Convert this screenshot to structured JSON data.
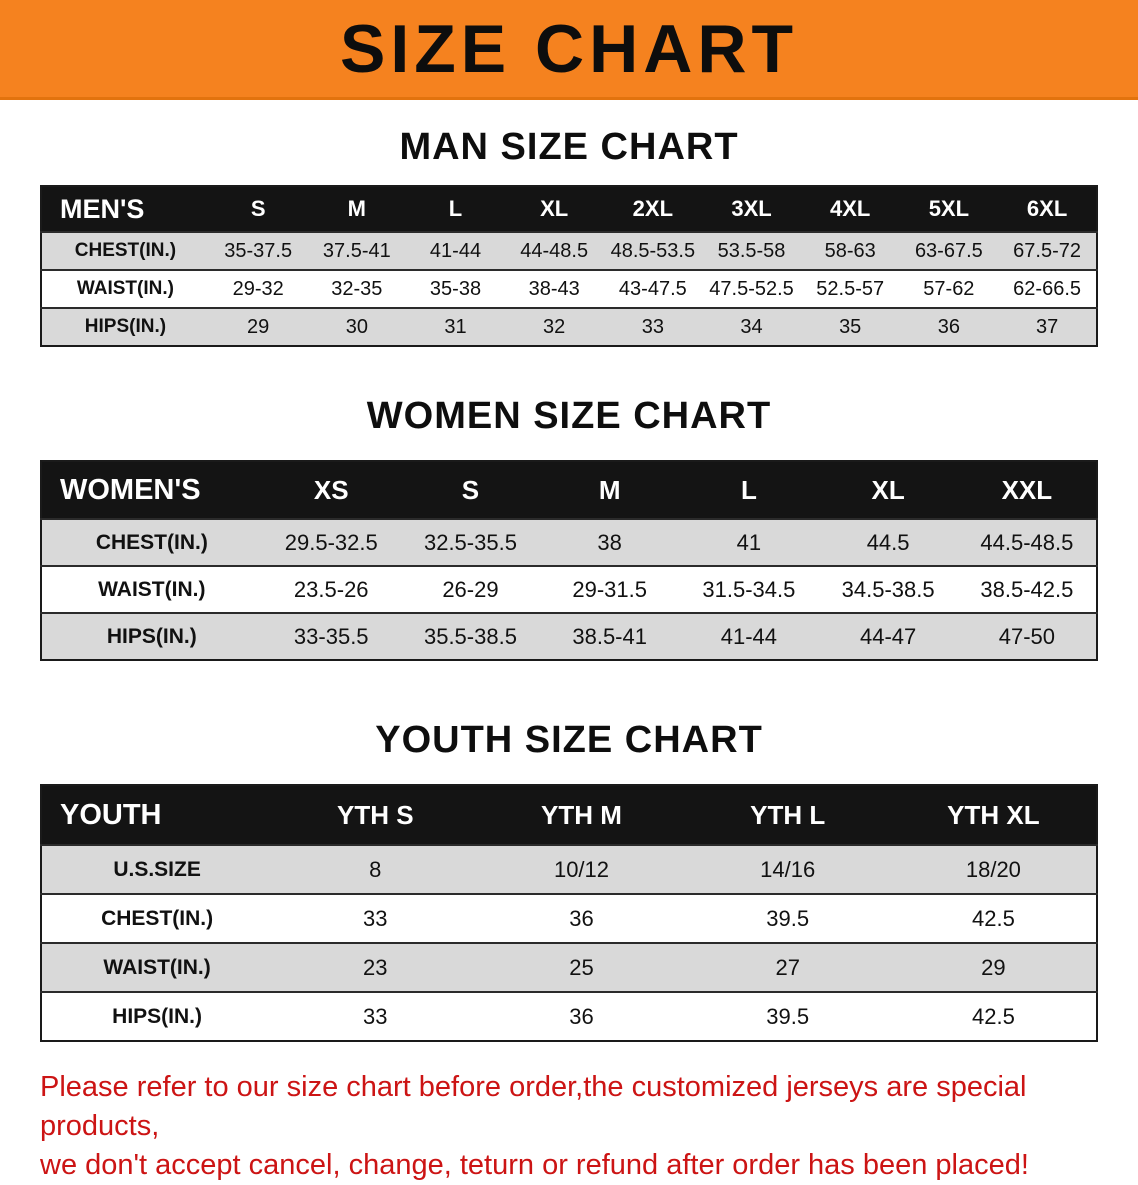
{
  "banner": {
    "title": "SIZE CHART"
  },
  "colors": {
    "banner_bg": "#f5821f",
    "table_header_bg": "#141414",
    "row_alt_gray": "#d9d9d9",
    "footer_red": "#cc1414"
  },
  "men": {
    "heading": "MAN SIZE CHART",
    "header": {
      "label": "MEN'S",
      "sizes": [
        "S",
        "M",
        "L",
        "XL",
        "2XL",
        "3XL",
        "4XL",
        "5XL",
        "6XL"
      ]
    },
    "rows": [
      {
        "label": "CHEST(IN.)",
        "values": [
          "35-37.5",
          "37.5-41",
          "41-44",
          "44-48.5",
          "48.5-53.5",
          "53.5-58",
          "58-63",
          "63-67.5",
          "67.5-72"
        ]
      },
      {
        "label": "WAIST(IN.)",
        "values": [
          "29-32",
          "32-35",
          "35-38",
          "38-43",
          "43-47.5",
          "47.5-52.5",
          "52.5-57",
          "57-62",
          "62-66.5"
        ]
      },
      {
        "label": "HIPS(IN.)",
        "values": [
          "29",
          "30",
          "31",
          "32",
          "33",
          "34",
          "35",
          "36",
          "37"
        ]
      }
    ]
  },
  "women": {
    "heading": "WOMEN SIZE CHART",
    "header": {
      "label": "WOMEN'S",
      "sizes": [
        "XS",
        "S",
        "M",
        "L",
        "XL",
        "XXL"
      ]
    },
    "rows": [
      {
        "label": "CHEST(IN.)",
        "values": [
          "29.5-32.5",
          "32.5-35.5",
          "38",
          "41",
          "44.5",
          "44.5-48.5"
        ]
      },
      {
        "label": "WAIST(IN.)",
        "values": [
          "23.5-26",
          "26-29",
          "29-31.5",
          "31.5-34.5",
          "34.5-38.5",
          "38.5-42.5"
        ]
      },
      {
        "label": "HIPS(IN.)",
        "values": [
          "33-35.5",
          "35.5-38.5",
          "38.5-41",
          "41-44",
          "44-47",
          "47-50"
        ]
      }
    ]
  },
  "youth": {
    "heading": "YOUTH SIZE CHART",
    "header": {
      "label": "YOUTH",
      "sizes": [
        "YTH S",
        "YTH M",
        "YTH L",
        "YTH XL"
      ]
    },
    "rows": [
      {
        "label": "U.S.SIZE",
        "values": [
          "8",
          "10/12",
          "14/16",
          "18/20"
        ]
      },
      {
        "label": "CHEST(IN.)",
        "values": [
          "33",
          "36",
          "39.5",
          "42.5"
        ]
      },
      {
        "label": "WAIST(IN.)",
        "values": [
          "23",
          "25",
          "27",
          "29"
        ]
      },
      {
        "label": "HIPS(IN.)",
        "values": [
          "33",
          "36",
          "39.5",
          "42.5"
        ]
      }
    ]
  },
  "footer": {
    "line1": "Please refer to our size chart before order,the customized jerseys are special products,",
    "line2": "we don't accept cancel, change, teturn or refund after order has been placed!"
  }
}
